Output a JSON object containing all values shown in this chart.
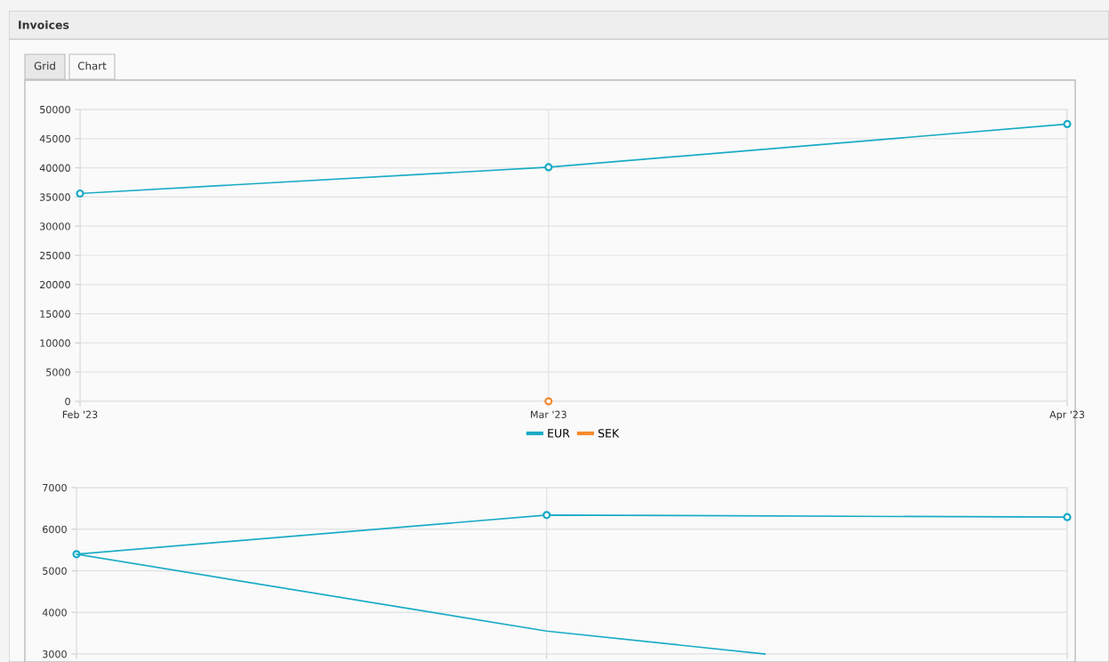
{
  "chart_data": [
    {
      "type": "line",
      "title": "Invoices",
      "annotations": [
        "Grid",
        "Chart"
      ],
      "x": [
        "2023-02",
        "2023-03",
        "2023-04"
      ],
      "series": [
        {
          "name": "EUR",
          "color": "#1aabc6",
          "values": [
            35600,
            40100,
            47500
          ]
        },
        {
          "name": "SEK",
          "color": "#f58a2e",
          "x": [
            "2023-03"
          ],
          "values": [
            0
          ]
        }
      ],
      "xlim": [
        "2023-02",
        "2023-04"
      ],
      "xticks": [
        {
          "value": "2023-02",
          "label": "Feb '23"
        },
        {
          "value": "2023-03",
          "label": "Mar '23"
        },
        {
          "value": "2023-04",
          "label": "Apr '23"
        }
      ],
      "ylim": [
        0,
        50000
      ],
      "yticks": [
        0,
        5000,
        10000,
        15000,
        20000,
        25000,
        30000,
        35000,
        40000,
        45000,
        50000
      ],
      "grid": true,
      "legend": "bottom",
      "marker": "circle",
      "line_style": "solid"
    },
    {
      "type": "line",
      "x": [
        "2023-02",
        "2023-03",
        "2023-04"
      ],
      "series": [
        {
          "color": "#1aabc6",
          "values": [
            5400,
            6340,
            6290
          ]
        },
        {
          "color": "#1aabc6",
          "x": [
            "2023-02",
            "2023-03",
            "2023-03-14"
          ],
          "values": [
            5400,
            3550,
            3000
          ],
          "marker": "none"
        }
      ],
      "xlim": [
        "2023-02",
        "2023-04"
      ],
      "xticks": [
        {
          "value": "2023-02",
          "label": null
        },
        {
          "value": "2023-03",
          "label": null
        },
        {
          "value": "2023-04",
          "label": null
        }
      ],
      "ylim": [
        3000,
        7000
      ],
      "yticks": [
        3000,
        4000,
        5000,
        6000,
        7000
      ],
      "grid": true,
      "tick_labels": "y",
      "marker": "circle",
      "line_style": "solid"
    }
  ]
}
